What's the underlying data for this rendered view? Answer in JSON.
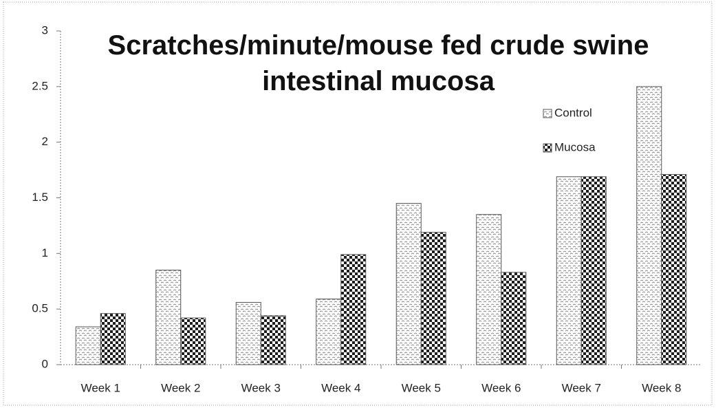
{
  "chart_data": {
    "type": "bar",
    "title": "Scratches/minute/mouse fed crude swine intestinal mucosa",
    "categories": [
      "Week 1",
      "Week 2",
      "Week 3",
      "Week 4",
      "Week 5",
      "Week 6",
      "Week 7",
      "Week 8"
    ],
    "series": [
      {
        "name": "Control",
        "color": "#8a8a8a",
        "values": [
          0.34,
          0.85,
          0.56,
          0.59,
          1.45,
          1.35,
          1.69,
          2.5
        ]
      },
      {
        "name": "Mucosa",
        "color": "#1e1e1e",
        "values": [
          0.46,
          0.42,
          0.44,
          0.99,
          1.19,
          0.83,
          1.69,
          1.71
        ]
      }
    ],
    "ylim": [
      0,
      3
    ],
    "yticks": [
      0,
      0.5,
      1,
      1.5,
      2,
      2.5,
      3
    ],
    "grid": false,
    "legend": "upper right"
  }
}
